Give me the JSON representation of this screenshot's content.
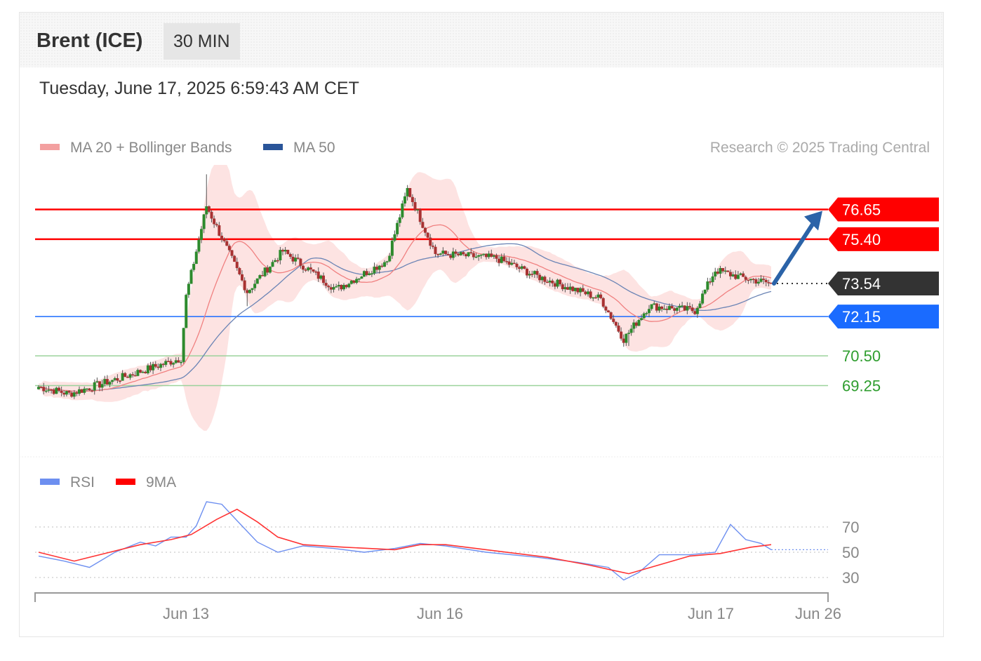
{
  "header": {
    "title": "Brent (ICE)",
    "timeframe": "30 MIN",
    "datetime": "Tuesday, June 17, 2025 6:59:43 AM CET"
  },
  "legend": {
    "ma20_bb": "MA 20 + Bollinger Bands",
    "ma50": "MA 50",
    "rsi": "RSI",
    "rsi_ma": "9MA",
    "credit": "Research © 2025 Trading Central"
  },
  "colors": {
    "bollinger_fill": "#fde0df",
    "ma20": "#f08080",
    "ma50": "#6b84b5",
    "resistance": "#ff0000",
    "current": "#333333",
    "pivot": "#1a6bff",
    "support": "#9bd29b",
    "support_text": "#2e9d2e",
    "candle_up": "#2d8a2d",
    "candle_down": "#a83232",
    "rsi": "#6d8ff0",
    "rsi_ma": "#ff3333",
    "arrow": "#2b63a8"
  },
  "chart_data": [
    {
      "type": "candlestick",
      "title": "Brent (ICE)",
      "ylim": [
        66.3,
        77.8
      ],
      "x_labels": [
        "Jun 13",
        "Jun 16",
        "Jun 17",
        "Jun 26"
      ],
      "levels": [
        {
          "value": 76.65,
          "label": "76.65",
          "kind": "resistance"
        },
        {
          "value": 75.4,
          "label": "75.40",
          "kind": "resistance"
        },
        {
          "value": 73.54,
          "label": "73.54",
          "kind": "current"
        },
        {
          "value": 72.15,
          "label": "72.15",
          "kind": "pivot"
        },
        {
          "value": 70.5,
          "label": "70.50",
          "kind": "support"
        },
        {
          "value": 69.25,
          "label": "69.25",
          "kind": "support"
        }
      ],
      "forecast": {
        "from": 73.54,
        "to": 76.65,
        "direction": "up"
      },
      "key_points": [
        {
          "t": 0,
          "close": 69.2
        },
        {
          "t": 12,
          "close": 68.9
        },
        {
          "t": 30,
          "close": 69.5
        },
        {
          "t": 56,
          "close": 70.4
        },
        {
          "t": 58,
          "close": 73.0
        },
        {
          "t": 66,
          "close": 76.8
        },
        {
          "t": 82,
          "close": 73.2
        },
        {
          "t": 96,
          "close": 74.9
        },
        {
          "t": 117,
          "close": 73.3
        },
        {
          "t": 137,
          "close": 74.5
        },
        {
          "t": 145,
          "close": 77.5
        },
        {
          "t": 156,
          "close": 74.8
        },
        {
          "t": 180,
          "close": 74.6
        },
        {
          "t": 197,
          "close": 73.8
        },
        {
          "t": 221,
          "close": 72.9
        },
        {
          "t": 230,
          "close": 71.2
        },
        {
          "t": 240,
          "close": 72.6
        },
        {
          "t": 258,
          "close": 72.4
        },
        {
          "t": 266,
          "close": 74.1
        },
        {
          "t": 276,
          "close": 73.8
        },
        {
          "t": 288,
          "close": 73.54
        }
      ]
    },
    {
      "type": "line",
      "title": "RSI",
      "ylim": [
        20,
        100
      ],
      "yticks": [
        30,
        50,
        70
      ],
      "series": [
        {
          "name": "RSI",
          "values": [
            [
              0,
              47
            ],
            [
              10,
              43
            ],
            [
              20,
              38
            ],
            [
              30,
              50
            ],
            [
              40,
              58
            ],
            [
              46,
              55
            ],
            [
              52,
              62
            ],
            [
              58,
              62
            ],
            [
              62,
              71
            ],
            [
              66,
              90
            ],
            [
              72,
              88
            ],
            [
              78,
              75
            ],
            [
              86,
              58
            ],
            [
              94,
              50
            ],
            [
              104,
              55
            ],
            [
              116,
              53
            ],
            [
              128,
              50
            ],
            [
              140,
              53
            ],
            [
              150,
              57
            ],
            [
              160,
              55
            ],
            [
              176,
              50
            ],
            [
              196,
              46
            ],
            [
              212,
              42
            ],
            [
              224,
              38
            ],
            [
              230,
              28
            ],
            [
              236,
              34
            ],
            [
              244,
              48
            ],
            [
              256,
              48
            ],
            [
              266,
              50
            ],
            [
              272,
              72
            ],
            [
              278,
              60
            ],
            [
              284,
              57
            ],
            [
              288,
              52
            ]
          ]
        },
        {
          "name": "9MA",
          "values": [
            [
              0,
              50
            ],
            [
              14,
              43
            ],
            [
              28,
              50
            ],
            [
              40,
              56
            ],
            [
              52,
              60
            ],
            [
              60,
              64
            ],
            [
              70,
              76
            ],
            [
              78,
              84
            ],
            [
              86,
              74
            ],
            [
              94,
              62
            ],
            [
              104,
              56
            ],
            [
              120,
              54
            ],
            [
              140,
              52
            ],
            [
              150,
              56
            ],
            [
              160,
              56
            ],
            [
              176,
              52
            ],
            [
              200,
              46
            ],
            [
              216,
              40
            ],
            [
              232,
              33
            ],
            [
              244,
              40
            ],
            [
              256,
              47
            ],
            [
              268,
              49
            ],
            [
              280,
              54
            ],
            [
              288,
              56
            ]
          ]
        }
      ]
    }
  ]
}
